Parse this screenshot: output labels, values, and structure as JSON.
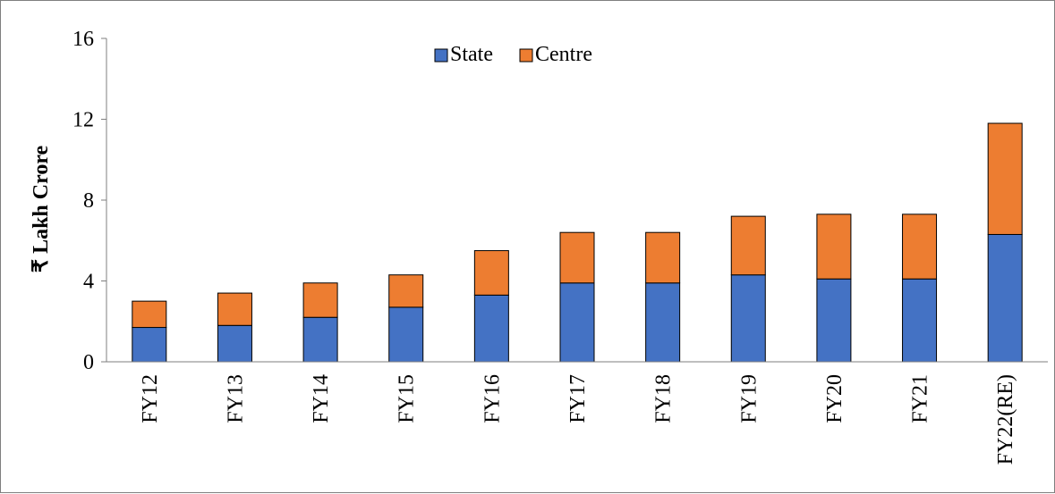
{
  "chart_data": {
    "type": "bar",
    "stacked": true,
    "categories": [
      "FY12",
      "FY13",
      "FY14",
      "FY15",
      "FY16",
      "FY17",
      "FY18",
      "FY19",
      "FY20",
      "FY21",
      "FY22(RE)"
    ],
    "series": [
      {
        "name": "State",
        "color": "#4472C4",
        "values": [
          1.7,
          1.8,
          2.2,
          2.7,
          3.3,
          3.9,
          3.9,
          4.3,
          4.1,
          4.1,
          6.3
        ]
      },
      {
        "name": "Centre",
        "color": "#ED7D31",
        "values": [
          1.3,
          1.6,
          1.7,
          1.6,
          2.2,
          2.5,
          2.5,
          2.9,
          3.2,
          3.2,
          5.5
        ]
      }
    ],
    "title": "",
    "xlabel": "",
    "ylabel": "₹ Lakh Crore",
    "ylim": [
      0,
      16
    ],
    "yticks": [
      0,
      4,
      8,
      12,
      16
    ],
    "grid": false,
    "legend_position": "top-center"
  }
}
